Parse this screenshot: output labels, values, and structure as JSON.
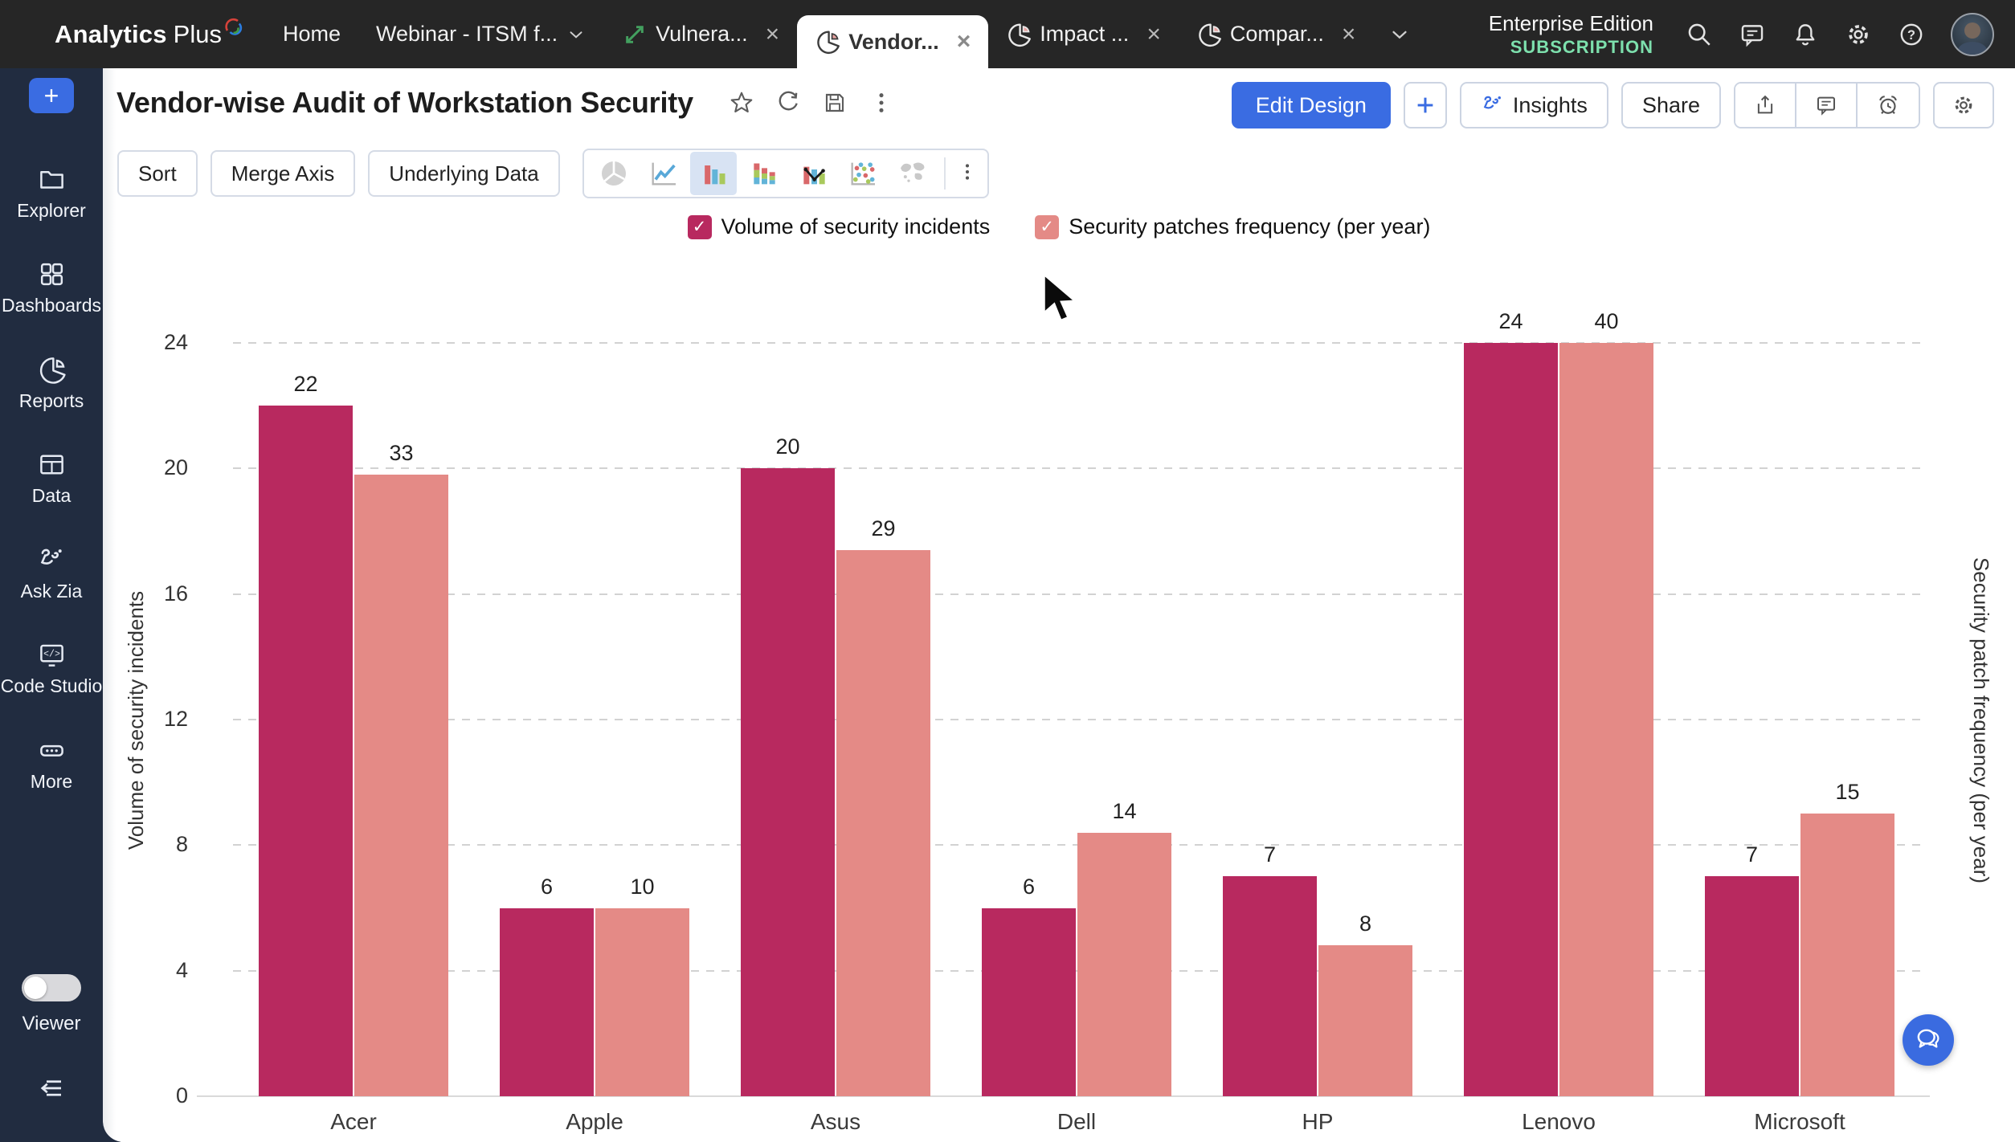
{
  "navbar": {
    "logo": {
      "bold": "Analytics",
      "light": "Plus"
    },
    "tabs": [
      {
        "label": "Home"
      },
      {
        "label": "Webinar - ITSM f...",
        "dropdown": true
      },
      {
        "label": "Vulnera...",
        "icon": "trend",
        "closable": true
      },
      {
        "label": "Vendor...",
        "icon": "pie-tab",
        "closable": true,
        "active": true
      },
      {
        "label": "Impact ...",
        "icon": "pie-tab",
        "closable": true
      },
      {
        "label": "Compar...",
        "icon": "pie-tab",
        "closable": true
      }
    ],
    "more_tabs_chevron": true,
    "edition": "Enterprise Edition",
    "subscription": "SUBSCRIPTION",
    "icons": [
      "search",
      "chat",
      "bell",
      "gear",
      "help"
    ]
  },
  "sidebar": {
    "plus_label": "+",
    "items": [
      {
        "label": "Explorer",
        "icon": "folder"
      },
      {
        "label": "Dashboards",
        "icon": "grid"
      },
      {
        "label": "Reports",
        "icon": "pie-report"
      },
      {
        "label": "Data",
        "icon": "table"
      },
      {
        "label": "Ask Zia",
        "icon": "zia"
      },
      {
        "label": "Code Studio",
        "icon": "code"
      },
      {
        "label": "More",
        "icon": "more-pill"
      }
    ],
    "viewer_label": "Viewer"
  },
  "header": {
    "title": "Vendor-wise Audit of Workstation Security",
    "edit_design": "Edit Design",
    "insights": "Insights",
    "share": "Share"
  },
  "toolbar": {
    "sort": "Sort",
    "merge_axis": "Merge Axis",
    "underlying_data": "Underlying Data",
    "chart_types": [
      {
        "name": "pie"
      },
      {
        "name": "line"
      },
      {
        "name": "bar",
        "selected": true
      },
      {
        "name": "stacked-bar"
      },
      {
        "name": "combo"
      },
      {
        "name": "scatter"
      },
      {
        "name": "map"
      }
    ]
  },
  "legend": [
    {
      "label": "Volume of security incidents",
      "color": "#b8295f"
    },
    {
      "label": "Security patches frequency (per year)",
      "color": "#e48a86"
    }
  ],
  "chart_data": {
    "type": "bar",
    "title": "Vendor-wise Audit of Workstation Security",
    "categories": [
      "Acer",
      "Apple",
      "Asus",
      "Dell",
      "HP",
      "Lenovo",
      "Microsoft"
    ],
    "series": [
      {
        "name": "Volume of security incidents",
        "axis": "left",
        "color": "#b8295f",
        "values": [
          22,
          6,
          20,
          6,
          7,
          24,
          7
        ]
      },
      {
        "name": "Security patches frequency (per year)",
        "axis": "right",
        "color": "#e48a86",
        "values": [
          33,
          10,
          29,
          14,
          8,
          40,
          15
        ]
      }
    ],
    "left_axis": {
      "label": "Volume of security incidents",
      "ticks": [
        0,
        4,
        8,
        12,
        16,
        20,
        24
      ],
      "max": 24
    },
    "right_axis": {
      "label": "Security patch frequency (per year)",
      "ticks": [
        0,
        10,
        20,
        30,
        40
      ],
      "max": 40
    },
    "grid": "horizontal-dashed",
    "legend_position": "top",
    "data_labels": true
  },
  "colors": {
    "accent_blue": "#3a6ce2",
    "subscription_green": "#7de0ad",
    "series_dark": "#b8295f",
    "series_light": "#e48a86",
    "selected_chart_type_bg": "#d8e3f3"
  }
}
